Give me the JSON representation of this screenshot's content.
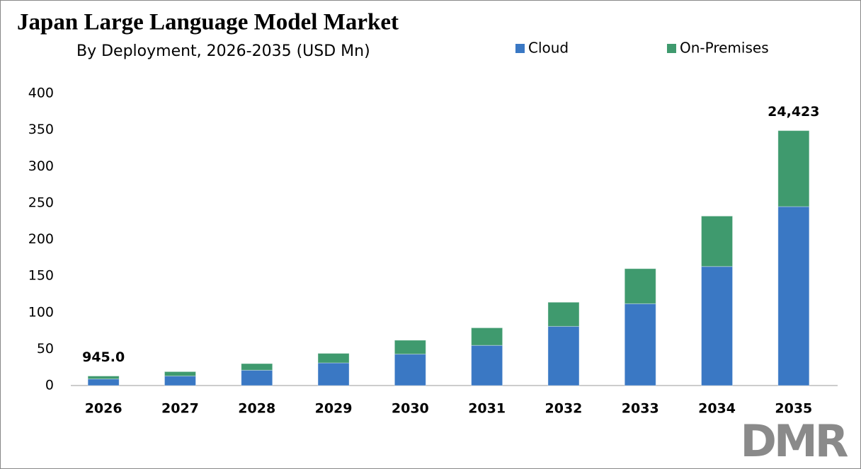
{
  "chart_data": {
    "type": "stacked-bar",
    "title": "Japan Large Language Model Market",
    "subtitle": "By Deployment, 2026-2035 (USD Mn)",
    "categories": [
      "2026",
      "2027",
      "2028",
      "2029",
      "2030",
      "2031",
      "2032",
      "2033",
      "2034",
      "2035"
    ],
    "series": [
      {
        "name": "Cloud",
        "color": "#3a78c4",
        "values": [
          9,
          13,
          21,
          31,
          43,
          55,
          81,
          112,
          163,
          245
        ]
      },
      {
        "name": "On-Premises",
        "color": "#3f9a6e",
        "values": [
          4,
          6,
          9,
          13,
          19,
          24,
          33,
          48,
          69,
          104
        ]
      }
    ],
    "annotations": [
      "945.0",
      "24,423"
    ],
    "ylim": [
      0,
      400
    ],
    "yticks": [
      0,
      50,
      100,
      150,
      200,
      250,
      300,
      350,
      400
    ],
    "grid": false,
    "logo": "DMR"
  }
}
